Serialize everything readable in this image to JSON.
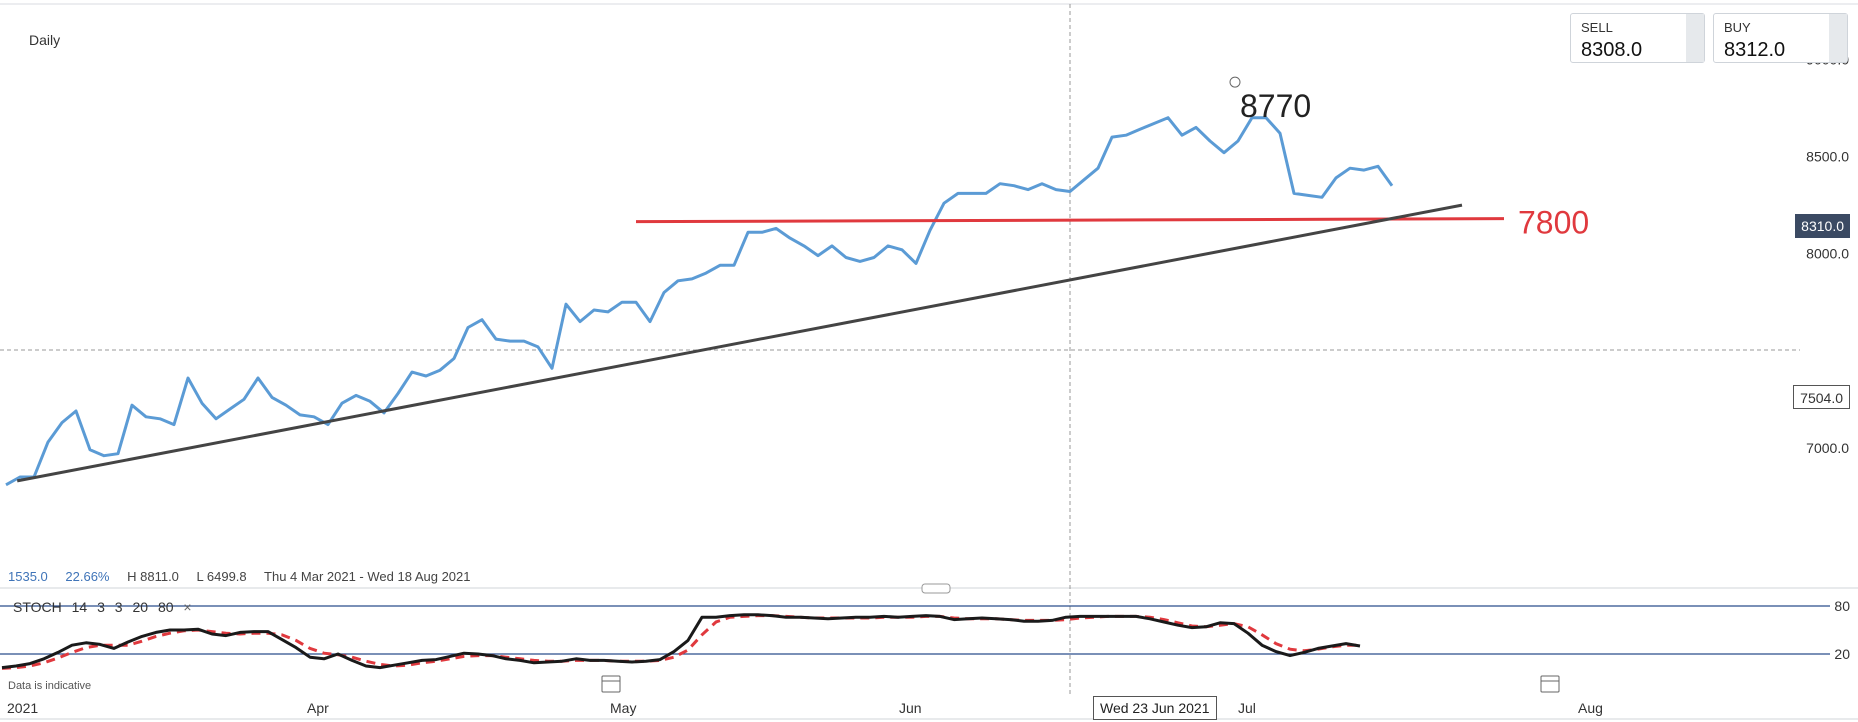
{
  "timeframe": "Daily",
  "quote": {
    "sell_label": "SELL",
    "sell_value": "8308.0",
    "buy_label": "BUY",
    "buy_value": "8312.0"
  },
  "price_tags": {
    "current": "8310.0",
    "crosshair": "7504.0"
  },
  "stats": {
    "change": "1535.0",
    "change_pct": "22.66%",
    "high": "H 8811.0",
    "low": "L 6499.8",
    "range": "Thu 4 Mar 2021 - Wed 18 Aug 2021"
  },
  "stoch": {
    "name": "STOCH",
    "params": [
      "14",
      "3",
      "3",
      "20",
      "80"
    ],
    "close": "×"
  },
  "disclaimer": "Data is indicative",
  "crosshair_date": "Wed 23 Jun 2021",
  "colors": {
    "price": "#5b9bd5",
    "support": "#e0393e",
    "trend": "#444444",
    "stoch_k": "#1a1a1a",
    "stoch_d": "#e0393e",
    "tag_bg": "#3b4a63"
  },
  "icons": [
    "calendar-icon",
    "drag-handle-icon",
    "close-icon"
  ],
  "chart_data": [
    {
      "type": "line",
      "x_axis": {
        "labels": [
          "2021",
          "Apr",
          "May",
          "Jun",
          "Jul",
          "Aug"
        ]
      },
      "ylim": [
        6500,
        9100
      ],
      "y_ticks": [
        "9000.0",
        "8500.0",
        "8000.0",
        "7000.0"
      ],
      "y_tick_values": [
        9000,
        8500,
        8000,
        7000
      ],
      "grid": false,
      "series": [
        {
          "values": [
            6810,
            6850,
            6850,
            7030,
            7130,
            7190,
            6990,
            6960,
            6970,
            7220,
            7160,
            7150,
            7120,
            7360,
            7230,
            7150,
            7200,
            7250,
            7360,
            7260,
            7220,
            7170,
            7160,
            7120,
            7230,
            7270,
            7240,
            7180,
            7280,
            7390,
            7370,
            7400,
            7460,
            7620,
            7660,
            7560,
            7550,
            7550,
            7520,
            7410,
            7740,
            7650,
            7710,
            7700,
            7750,
            7750,
            7650,
            7800,
            7860,
            7870,
            7900,
            7940,
            7940,
            8110,
            8110,
            8130,
            8080,
            8040,
            7990,
            8040,
            7980,
            7960,
            7980,
            8040,
            8020,
            7950,
            8120,
            8260,
            8310,
            8310,
            8310,
            8360,
            8350,
            8330,
            8360,
            8330,
            8320,
            8380,
            8440,
            8600,
            8610,
            8640,
            8670,
            8700,
            8610,
            8650,
            8580,
            8520,
            8580,
            8700,
            8700,
            8620,
            8310,
            8300,
            8290,
            8390,
            8440,
            8430,
            8450,
            8350
          ]
        }
      ],
      "annotations": [
        {
          "type": "horizontal_level",
          "label": "7800",
          "value": 8170,
          "x_from": 45,
          "x_to": 107
        },
        {
          "type": "trendline",
          "from": [
            0.8,
            6830
          ],
          "to": [
            104,
            8250
          ]
        },
        {
          "type": "text",
          "label": "8770",
          "x": 88,
          "y": 8770
        }
      ],
      "crosshair": {
        "x": 76,
        "y": 7504
      }
    },
    {
      "type": "line",
      "title": "STOCH",
      "ylim": [
        0,
        100
      ],
      "y_ticks": [
        "80",
        "20"
      ],
      "y_tick_values": [
        80,
        20
      ],
      "series": [
        {
          "name": "%K",
          "values": [
            3,
            5,
            8,
            14,
            22,
            31,
            34,
            32,
            27,
            35,
            42,
            47,
            50,
            50,
            51,
            45,
            43,
            47,
            48,
            48,
            38,
            28,
            16,
            14,
            20,
            12,
            5,
            3,
            6,
            9,
            12,
            13,
            17,
            21,
            20,
            18,
            14,
            12,
            9,
            10,
            11,
            14,
            12,
            12,
            11,
            10,
            11,
            13,
            23,
            37,
            66,
            66,
            68,
            69,
            69,
            68,
            66,
            66,
            65,
            64,
            65,
            66,
            66,
            67,
            66,
            67,
            68,
            67,
            63,
            64,
            65,
            64,
            63,
            61,
            61,
            62,
            66,
            67,
            67,
            67,
            67,
            67,
            64,
            60,
            56,
            53,
            54,
            59,
            58,
            46,
            31,
            23,
            18,
            22,
            27,
            30,
            33,
            30
          ]
        },
        {
          "name": "%D",
          "values": [
            2,
            3,
            5,
            9,
            15,
            22,
            28,
            31,
            31,
            31,
            36,
            42,
            46,
            49,
            50,
            48,
            46,
            45,
            46,
            46,
            44,
            37,
            27,
            21,
            19,
            16,
            11,
            7,
            5,
            6,
            9,
            11,
            14,
            17,
            18,
            18,
            16,
            14,
            12,
            11,
            11,
            12,
            12,
            12,
            11,
            11,
            11,
            12,
            16,
            25,
            44,
            60,
            66,
            67,
            68,
            68,
            67,
            66,
            65,
            65,
            65,
            65,
            65,
            66,
            66,
            66,
            67,
            67,
            65,
            64,
            64,
            64,
            63,
            62,
            62,
            62,
            63,
            65,
            66,
            67,
            67,
            67,
            66,
            63,
            59,
            55,
            54,
            56,
            58,
            54,
            44,
            33,
            26,
            24,
            26,
            29,
            31,
            31
          ]
        }
      ]
    }
  ]
}
